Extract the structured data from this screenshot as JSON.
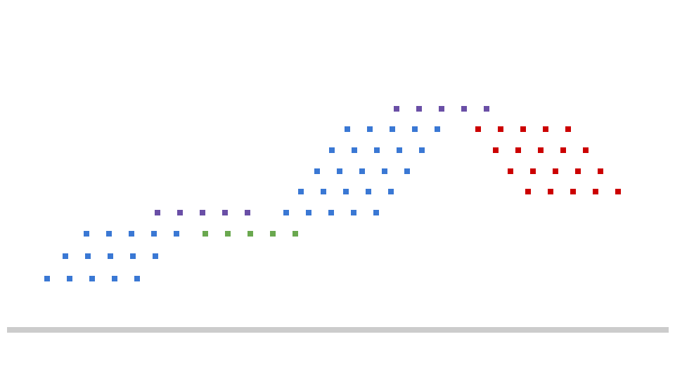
{
  "colors": {
    "background": "#ffffff",
    "ground": "#cccccc",
    "blue": "#3a78d4",
    "purple": "#6a4fa6",
    "green": "#6aa84f",
    "red": "#cc0000"
  },
  "dot_rows": [
    {
      "name": "row-blue-1",
      "color": "blue",
      "count": 5
    },
    {
      "name": "row-blue-2",
      "color": "blue",
      "count": 5
    },
    {
      "name": "row-blue-3",
      "color": "blue",
      "count": 5
    },
    {
      "name": "row-purple-1",
      "color": "purple",
      "count": 5
    },
    {
      "name": "row-green-1",
      "color": "green",
      "count": 5
    },
    {
      "name": "row-blue-4",
      "color": "blue",
      "count": 5
    },
    {
      "name": "row-blue-5",
      "color": "blue",
      "count": 5
    },
    {
      "name": "row-blue-6",
      "color": "blue",
      "count": 5
    },
    {
      "name": "row-blue-7",
      "color": "blue",
      "count": 5
    },
    {
      "name": "row-blue-8",
      "color": "blue",
      "count": 5
    },
    {
      "name": "row-purple-2",
      "color": "purple",
      "count": 5
    },
    {
      "name": "row-red-1",
      "color": "red",
      "count": 5
    },
    {
      "name": "row-red-2",
      "color": "red",
      "count": 5
    },
    {
      "name": "row-red-3",
      "color": "red",
      "count": 5
    },
    {
      "name": "row-red-4",
      "color": "red",
      "count": 5
    }
  ]
}
